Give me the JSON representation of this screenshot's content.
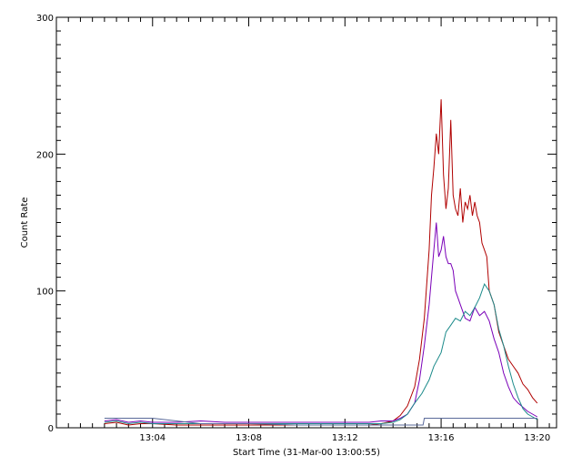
{
  "chart_data": {
    "type": "line",
    "title": "",
    "xlabel": "Start Time (31-Mar-00 13:00:55)",
    "ylabel": "Count Rate",
    "xlim_minutes": [
      0.0,
      20.8
    ],
    "ylim": [
      0,
      300
    ],
    "x_ticks": [
      {
        "label": "13:04",
        "minutes": 4
      },
      {
        "label": "13:08",
        "minutes": 8
      },
      {
        "label": "13:12",
        "minutes": 12
      },
      {
        "label": "13:16",
        "minutes": 16
      },
      {
        "label": "13:20",
        "minutes": 20
      }
    ],
    "y_ticks": [
      0,
      100,
      200,
      300
    ],
    "grid": false,
    "series": [
      {
        "color": "#b00000",
        "x": [
          2.0,
          2.5,
          3.0,
          3.5,
          4.0,
          5.0,
          6.0,
          7.0,
          8.0,
          9.0,
          10.0,
          11.0,
          12.0,
          13.0,
          13.5,
          14.0,
          14.3,
          14.6,
          14.9,
          15.1,
          15.3,
          15.5,
          15.6,
          15.7,
          15.8,
          15.9,
          16.0,
          16.1,
          16.2,
          16.3,
          16.4,
          16.5,
          16.6,
          16.7,
          16.8,
          16.9,
          17.0,
          17.1,
          17.2,
          17.3,
          17.4,
          17.5,
          17.6,
          17.7,
          17.8,
          17.9,
          18.0,
          18.2,
          18.4,
          18.6,
          18.8,
          19.0,
          19.2,
          19.4,
          19.6,
          19.8,
          20.0
        ],
        "y": [
          3,
          4,
          2,
          3,
          3,
          2,
          2,
          2,
          2,
          2,
          2,
          2,
          2,
          2,
          3,
          5,
          9,
          16,
          30,
          50,
          80,
          130,
          170,
          190,
          215,
          200,
          240,
          185,
          160,
          175,
          225,
          170,
          160,
          155,
          175,
          150,
          165,
          160,
          170,
          155,
          165,
          155,
          150,
          135,
          130,
          125,
          100,
          90,
          70,
          60,
          50,
          45,
          40,
          32,
          28,
          22,
          18
        ]
      },
      {
        "color": "#7a00b8",
        "x": [
          2.0,
          2.5,
          3.0,
          3.5,
          4.0,
          5.0,
          6.0,
          7.0,
          8.0,
          9.0,
          10.0,
          11.0,
          12.0,
          13.0,
          13.5,
          14.0,
          14.3,
          14.6,
          14.9,
          15.1,
          15.3,
          15.5,
          15.6,
          15.7,
          15.8,
          15.9,
          16.0,
          16.1,
          16.2,
          16.3,
          16.4,
          16.5,
          16.6,
          16.7,
          16.8,
          16.9,
          17.0,
          17.2,
          17.4,
          17.6,
          17.8,
          18.0,
          18.2,
          18.4,
          18.6,
          18.8,
          19.0,
          19.2,
          19.4,
          19.6,
          19.8,
          20.0
        ],
        "y": [
          5,
          6,
          4,
          5,
          4,
          4,
          5,
          4,
          4,
          4,
          4,
          4,
          4,
          4,
          5,
          5,
          7,
          10,
          18,
          35,
          60,
          90,
          110,
          130,
          150,
          125,
          130,
          140,
          125,
          120,
          120,
          115,
          100,
          95,
          90,
          85,
          80,
          78,
          88,
          82,
          85,
          78,
          65,
          55,
          40,
          30,
          22,
          18,
          15,
          12,
          10,
          8
        ]
      },
      {
        "color": "#1b8a8a",
        "x": [
          2.0,
          2.5,
          3.0,
          3.5,
          4.0,
          5.0,
          6.0,
          7.0,
          8.0,
          9.0,
          10.0,
          11.0,
          12.0,
          13.0,
          13.5,
          14.0,
          14.3,
          14.6,
          14.9,
          15.2,
          15.5,
          15.7,
          16.0,
          16.2,
          16.4,
          16.6,
          16.8,
          17.0,
          17.2,
          17.4,
          17.6,
          17.8,
          18.0,
          18.2,
          18.4,
          18.6,
          18.8,
          19.0,
          19.2,
          19.4,
          19.6,
          19.8,
          20.0
        ],
        "y": [
          4,
          5,
          3,
          4,
          3,
          3,
          3,
          3,
          3,
          3,
          3,
          3,
          3,
          3,
          3,
          4,
          6,
          10,
          18,
          25,
          35,
          45,
          55,
          70,
          75,
          80,
          78,
          85,
          82,
          88,
          95,
          105,
          100,
          90,
          72,
          60,
          45,
          32,
          22,
          14,
          10,
          8,
          6
        ]
      },
      {
        "color": "#5a6a9a",
        "x": [
          2.0,
          4.0,
          6.0,
          8.0,
          10.0,
          12.0,
          14.0,
          15.05,
          15.25,
          15.3,
          17.0,
          19.0,
          20.0
        ],
        "y": [
          7,
          7,
          3,
          3,
          2,
          2,
          2,
          2,
          2,
          7,
          7,
          7,
          7
        ]
      }
    ]
  }
}
